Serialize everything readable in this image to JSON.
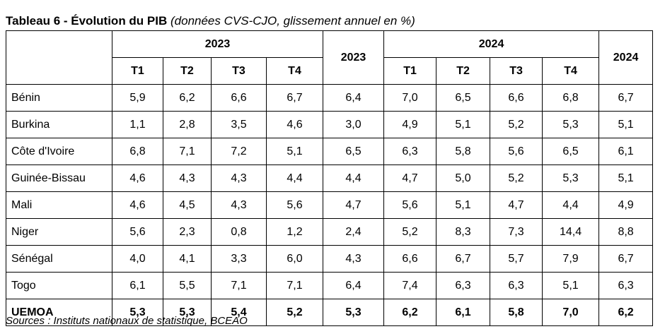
{
  "title": {
    "bold": "Tableau 6 - Évolution du PIB",
    "italic": "(données CVS-CJO, glissement annuel en %)"
  },
  "header": {
    "group_2023": "2023",
    "annual_2023": "2023",
    "group_2024": "2024",
    "annual_2024": "2024",
    "quarters_2023": [
      "T1",
      "T2",
      "T3",
      "T4"
    ],
    "quarters_2024": [
      "T1",
      "T2",
      "T3",
      "T4"
    ]
  },
  "rows": [
    {
      "name": "Bénin",
      "values": [
        "5,9",
        "6,2",
        "6,6",
        "6,7",
        "6,4",
        "7,0",
        "6,5",
        "6,6",
        "6,8",
        "6,7"
      ]
    },
    {
      "name": "Burkina",
      "values": [
        "1,1",
        "2,8",
        "3,5",
        "4,6",
        "3,0",
        "4,9",
        "5,1",
        "5,2",
        "5,3",
        "5,1"
      ]
    },
    {
      "name": "Côte d'Ivoire",
      "values": [
        "6,8",
        "7,1",
        "7,2",
        "5,1",
        "6,5",
        "6,3",
        "5,8",
        "5,6",
        "6,5",
        "6,1"
      ]
    },
    {
      "name": "Guinée-Bissau",
      "values": [
        "4,6",
        "4,3",
        "4,3",
        "4,4",
        "4,4",
        "4,7",
        "5,0",
        "5,2",
        "5,3",
        "5,1"
      ]
    },
    {
      "name": "Mali",
      "values": [
        "4,6",
        "4,5",
        "4,3",
        "5,6",
        "4,7",
        "5,6",
        "5,1",
        "4,7",
        "4,4",
        "4,9"
      ]
    },
    {
      "name": "Niger",
      "values": [
        "5,6",
        "2,3",
        "0,8",
        "1,2",
        "2,4",
        "5,2",
        "8,3",
        "7,3",
        "14,4",
        "8,8"
      ]
    },
    {
      "name": "Sénégal",
      "values": [
        "4,0",
        "4,1",
        "3,3",
        "6,0",
        "4,3",
        "6,6",
        "6,7",
        "5,7",
        "7,9",
        "6,7"
      ]
    },
    {
      "name": "Togo",
      "values": [
        "6,1",
        "5,5",
        "7,1",
        "7,1",
        "6,4",
        "7,4",
        "6,3",
        "6,3",
        "5,1",
        "6,3"
      ]
    }
  ],
  "total": {
    "name": "UEMOA",
    "values": [
      "5,3",
      "5,3",
      "5,4",
      "5,2",
      "5,3",
      "6,2",
      "6,1",
      "5,8",
      "7,0",
      "6,2"
    ]
  },
  "source": "Sources : Instituts nationaux de statistique, BCEAO"
}
